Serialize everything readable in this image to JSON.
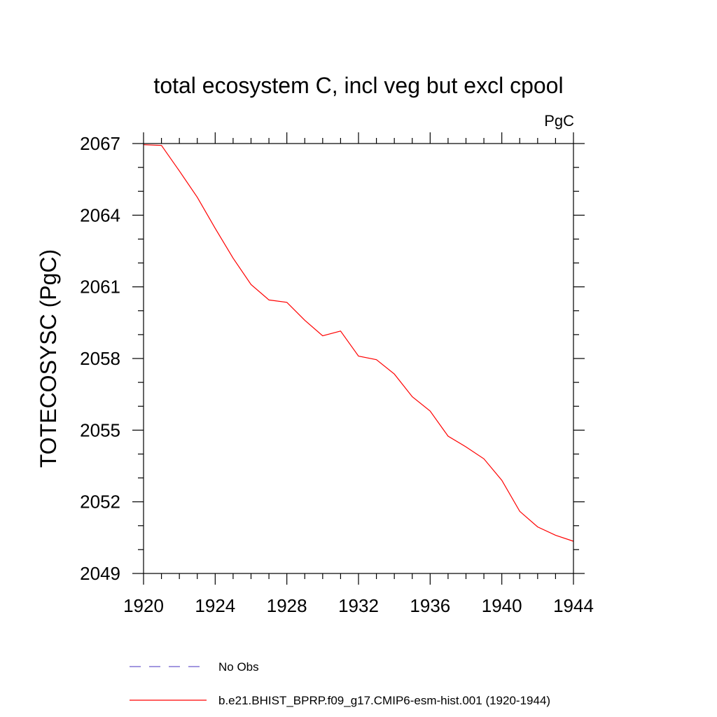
{
  "chart_data": {
    "type": "line",
    "title": "total ecosystem C, incl veg but excl cpool",
    "units": "PgC",
    "ylabel": "TOTECOSYSC  (PgC)",
    "xlabel": "",
    "xlim": [
      1920,
      1944
    ],
    "ylim": [
      2049,
      2067
    ],
    "xticks": [
      1920,
      1924,
      1928,
      1932,
      1936,
      1940,
      1944
    ],
    "yticks": [
      2049,
      2052,
      2055,
      2058,
      2061,
      2064,
      2067
    ],
    "x": [
      1920,
      1921,
      1922,
      1923,
      1924,
      1925,
      1926,
      1927,
      1928,
      1929,
      1930,
      1931,
      1932,
      1933,
      1934,
      1935,
      1936,
      1937,
      1938,
      1939,
      1940,
      1941,
      1942,
      1943,
      1944
    ],
    "series": [
      {
        "name": "b.e21.BHIST_BPRP.f09_g17.CMIP6-esm-hist.001 (1920-1944)",
        "color": "#ff0000",
        "values": [
          2066.95,
          2066.92,
          2065.85,
          2064.75,
          2063.45,
          2062.2,
          2061.1,
          2060.45,
          2060.35,
          2059.6,
          2058.95,
          2059.15,
          2058.1,
          2057.95,
          2057.35,
          2056.4,
          2055.8,
          2054.75,
          2054.3,
          2053.8,
          2052.9,
          2051.6,
          2050.95,
          2050.6,
          2050.35
        ]
      }
    ],
    "legend": [
      {
        "label": "No Obs",
        "color": "#6a5acd",
        "style": "dashed"
      },
      {
        "label": "b.e21.BHIST_BPRP.f09_g17.CMIP6-esm-hist.001 (1920-1944)",
        "color": "#ff0000",
        "style": "solid"
      }
    ],
    "legend_placement": "bottom",
    "grid": false
  }
}
